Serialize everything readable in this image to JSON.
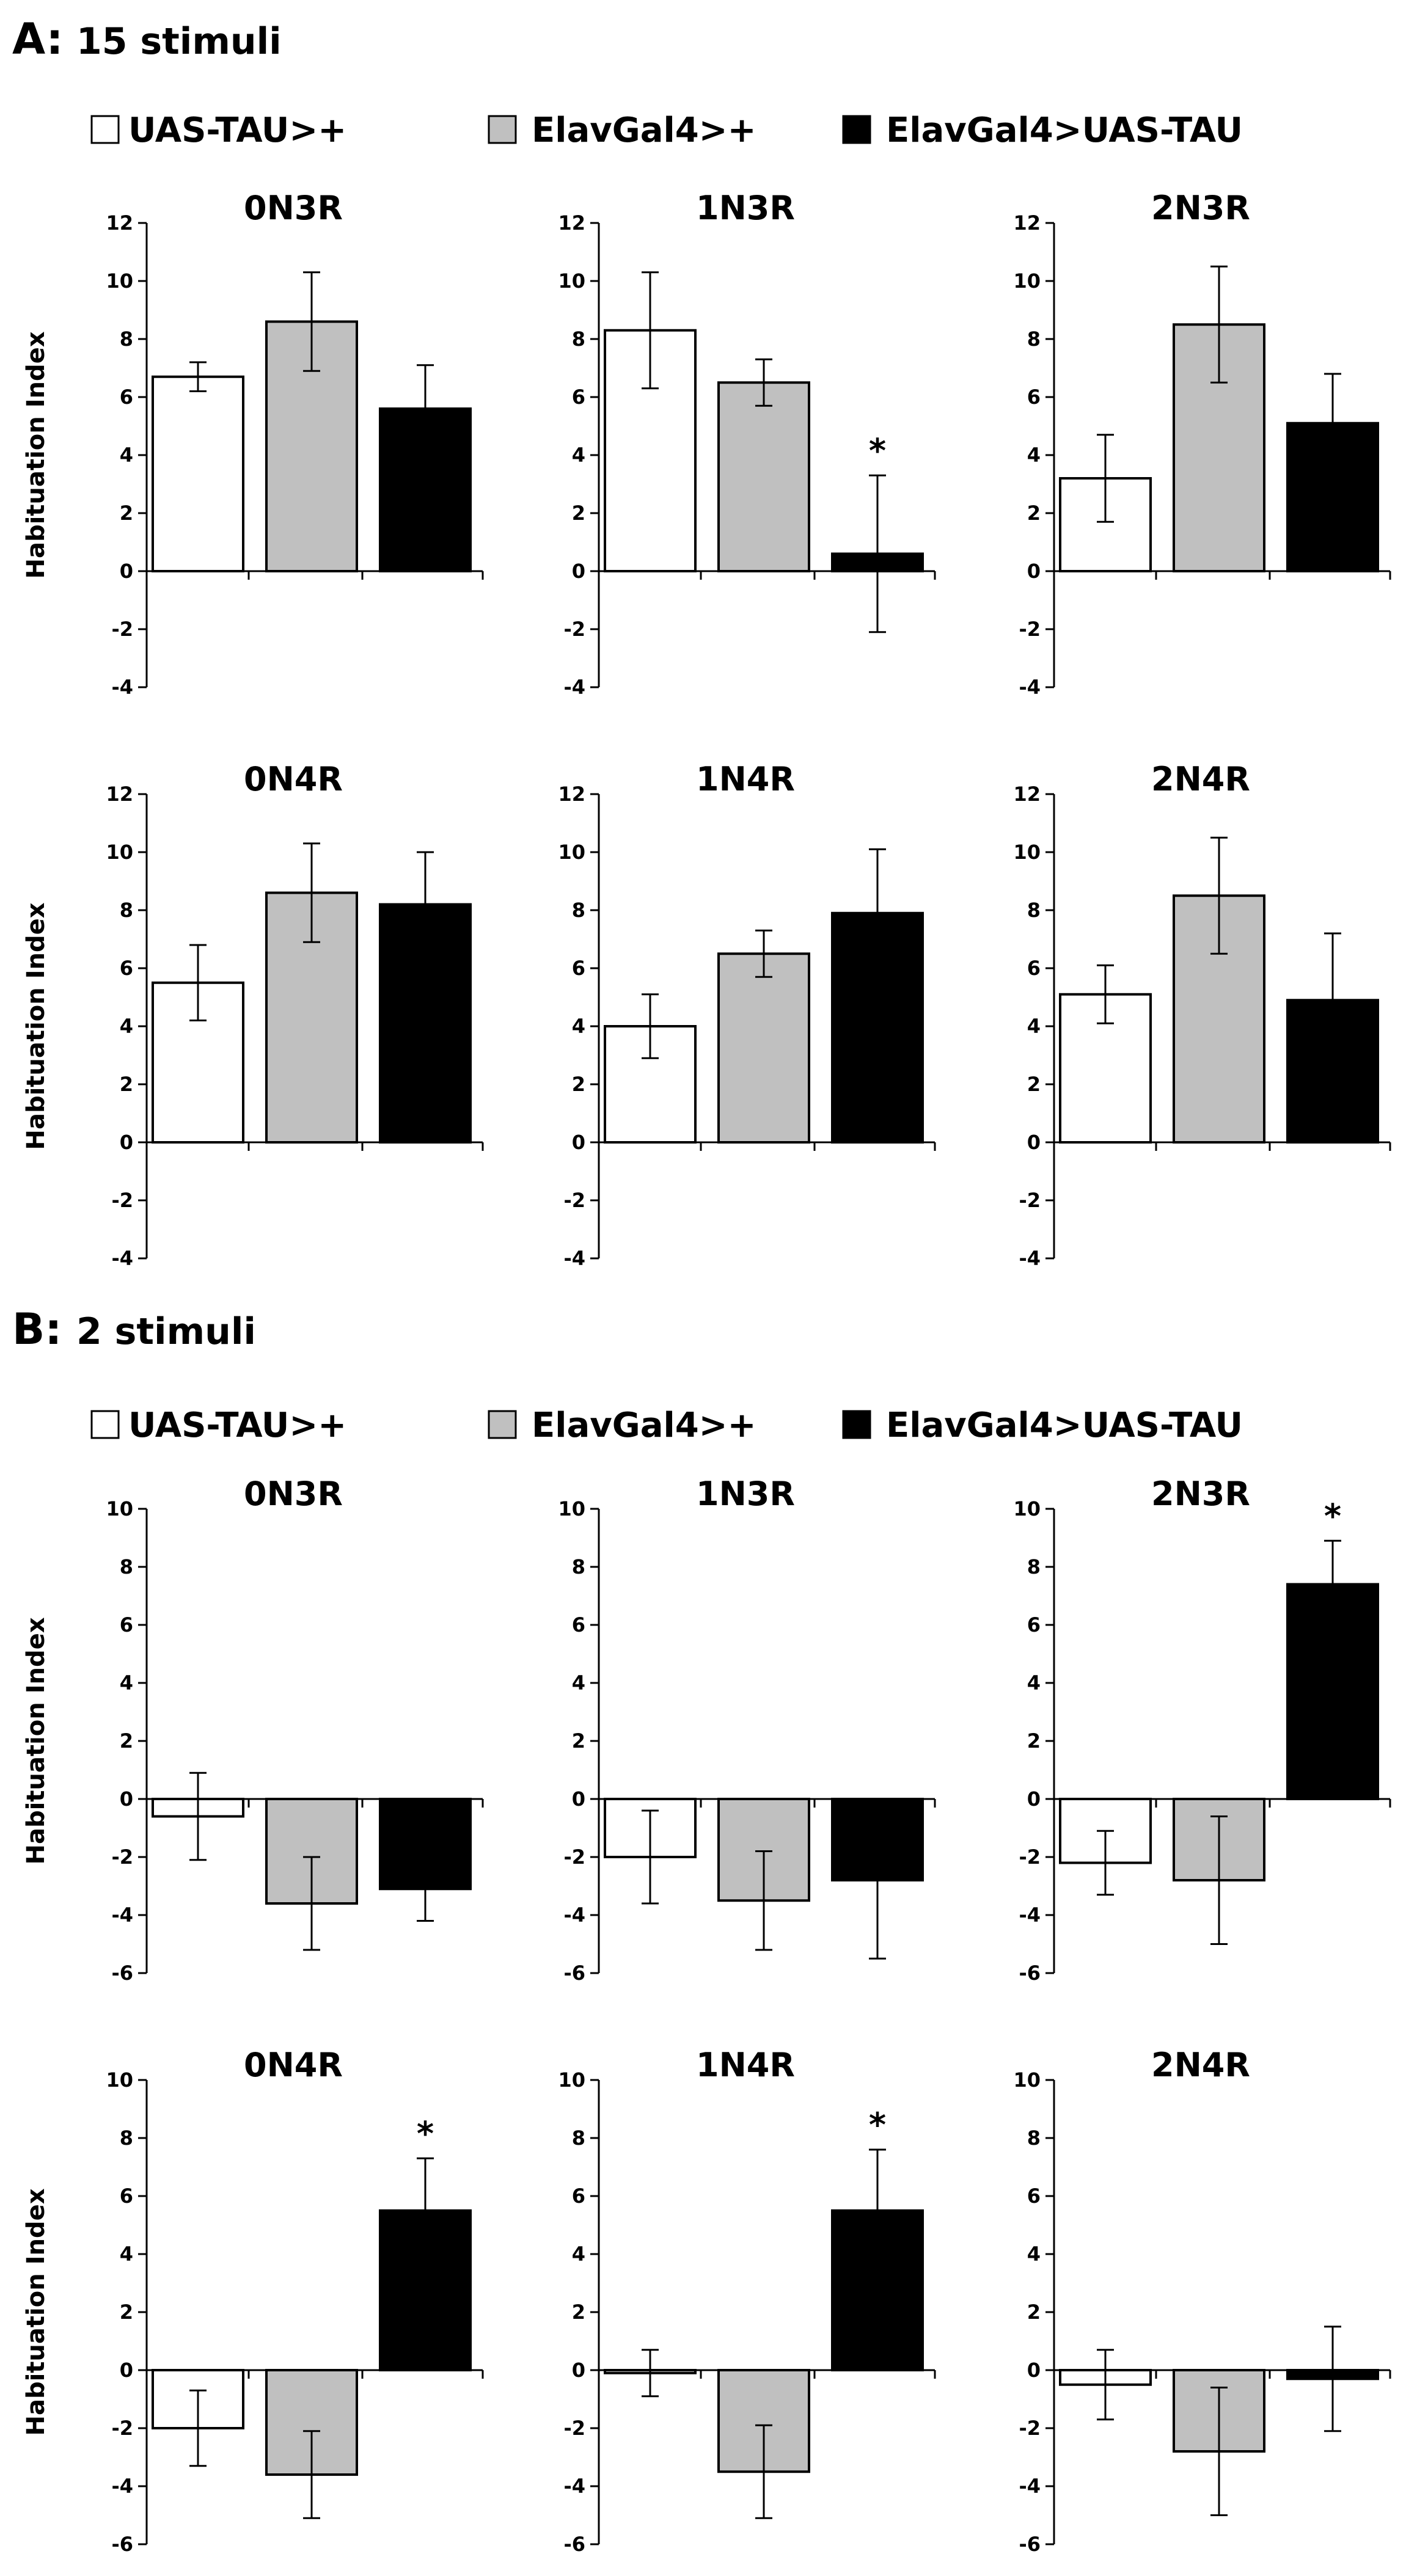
{
  "panels": [
    {
      "letter": "A:",
      "subtitle": "15 stimuli",
      "legend": [
        {
          "label": "UAS-TAU>+",
          "color": "#ffffff"
        },
        {
          "label": "ElavGal4>+",
          "color": "#c0c0c0"
        },
        {
          "label": "ElavGal4>UAS-TAU",
          "color": "#000000"
        }
      ]
    },
    {
      "letter": "B:",
      "subtitle": "2 stimuli",
      "legend": [
        {
          "label": "UAS-TAU>+",
          "color": "#ffffff"
        },
        {
          "label": "ElavGal4>+",
          "color": "#c0c0c0"
        },
        {
          "label": "ElavGal4>UAS-TAU",
          "color": "#000000"
        }
      ]
    }
  ],
  "chart_data": [
    {
      "type": "bar",
      "panel": "A",
      "title": "0N3R",
      "ylabel": "Habituation Index",
      "ylim": [
        -4,
        12
      ],
      "yticks": [
        12,
        10,
        8,
        6,
        4,
        2,
        0,
        -2,
        -4
      ],
      "series": [
        {
          "name": "UAS-TAU>+",
          "value": 6.7,
          "error": 0.5
        },
        {
          "name": "ElavGal4>+",
          "value": 8.6,
          "error": 1.7
        },
        {
          "name": "ElavGal4>UAS-TAU",
          "value": 5.6,
          "error": 1.5
        }
      ],
      "significance": ""
    },
    {
      "type": "bar",
      "panel": "A",
      "title": "1N3R",
      "ylabel": "",
      "ylim": [
        -4,
        12
      ],
      "yticks": [
        12,
        10,
        8,
        6,
        4,
        2,
        0,
        -2,
        -4
      ],
      "series": [
        {
          "name": "UAS-TAU>+",
          "value": 8.3,
          "error": 2.0
        },
        {
          "name": "ElavGal4>+",
          "value": 6.5,
          "error": 0.8
        },
        {
          "name": "ElavGal4>UAS-TAU",
          "value": 0.6,
          "error": 2.7
        }
      ],
      "significance": "*",
      "significance_index": 2
    },
    {
      "type": "bar",
      "panel": "A",
      "title": "2N3R",
      "ylabel": "",
      "ylim": [
        -4,
        12
      ],
      "yticks": [
        12,
        10,
        8,
        6,
        4,
        2,
        0,
        -2,
        -4
      ],
      "series": [
        {
          "name": "UAS-TAU>+",
          "value": 3.2,
          "error": 1.5
        },
        {
          "name": "ElavGal4>+",
          "value": 8.5,
          "error": 2.0
        },
        {
          "name": "ElavGal4>UAS-TAU",
          "value": 5.1,
          "error": 1.7
        }
      ],
      "significance": ""
    },
    {
      "type": "bar",
      "panel": "A",
      "title": "0N4R",
      "ylabel": "Habituation Index",
      "ylim": [
        -4,
        12
      ],
      "yticks": [
        12,
        10,
        8,
        6,
        4,
        2,
        0,
        -2,
        -4
      ],
      "series": [
        {
          "name": "UAS-TAU>+",
          "value": 5.5,
          "error": 1.3
        },
        {
          "name": "ElavGal4>+",
          "value": 8.6,
          "error": 1.7
        },
        {
          "name": "ElavGal4>UAS-TAU",
          "value": 8.2,
          "error": 1.8
        }
      ],
      "significance": ""
    },
    {
      "type": "bar",
      "panel": "A",
      "title": "1N4R",
      "ylabel": "",
      "ylim": [
        -4,
        12
      ],
      "yticks": [
        12,
        10,
        8,
        6,
        4,
        2,
        0,
        -2,
        -4
      ],
      "series": [
        {
          "name": "UAS-TAU>+",
          "value": 4.0,
          "error": 1.1
        },
        {
          "name": "ElavGal4>+",
          "value": 6.5,
          "error": 0.8
        },
        {
          "name": "ElavGal4>UAS-TAU",
          "value": 7.9,
          "error": 2.2
        }
      ],
      "significance": ""
    },
    {
      "type": "bar",
      "panel": "A",
      "title": "2N4R",
      "ylabel": "",
      "ylim": [
        -4,
        12
      ],
      "yticks": [
        12,
        10,
        8,
        6,
        4,
        2,
        0,
        -2,
        -4
      ],
      "series": [
        {
          "name": "UAS-TAU>+",
          "value": 5.1,
          "error": 1.0
        },
        {
          "name": "ElavGal4>+",
          "value": 8.5,
          "error": 2.0
        },
        {
          "name": "ElavGal4>UAS-TAU",
          "value": 4.9,
          "error": 2.3
        }
      ],
      "significance": ""
    },
    {
      "type": "bar",
      "panel": "B",
      "title": "0N3R",
      "ylabel": "Habituation Index",
      "ylim": [
        -6,
        10
      ],
      "yticks": [
        10,
        8,
        6,
        4,
        2,
        0,
        -2,
        -4,
        -6
      ],
      "series": [
        {
          "name": "UAS-TAU>+",
          "value": -0.6,
          "error": 1.5
        },
        {
          "name": "ElavGal4>+",
          "value": -3.6,
          "error": 1.6
        },
        {
          "name": "ElavGal4>UAS-TAU",
          "value": -3.1,
          "error": 1.1
        }
      ],
      "significance": ""
    },
    {
      "type": "bar",
      "panel": "B",
      "title": "1N3R",
      "ylabel": "",
      "ylim": [
        -6,
        10
      ],
      "yticks": [
        10,
        8,
        6,
        4,
        2,
        0,
        -2,
        -4,
        -6
      ],
      "series": [
        {
          "name": "UAS-TAU>+",
          "value": -2.0,
          "error": 1.6
        },
        {
          "name": "ElavGal4>+",
          "value": -3.5,
          "error": 1.7
        },
        {
          "name": "ElavGal4>UAS-TAU",
          "value": -2.8,
          "error": 2.7
        }
      ],
      "significance": ""
    },
    {
      "type": "bar",
      "panel": "B",
      "title": "2N3R",
      "ylabel": "",
      "ylim": [
        -6,
        10
      ],
      "yticks": [
        10,
        8,
        6,
        4,
        2,
        0,
        -2,
        -4,
        -6
      ],
      "series": [
        {
          "name": "UAS-TAU>+",
          "value": -2.2,
          "error": 1.1
        },
        {
          "name": "ElavGal4>+",
          "value": -2.8,
          "error": 2.2
        },
        {
          "name": "ElavGal4>UAS-TAU",
          "value": 7.4,
          "error": 1.5
        }
      ],
      "significance": "*",
      "significance_index": 2
    },
    {
      "type": "bar",
      "panel": "B",
      "title": "0N4R",
      "ylabel": "Habituation Index",
      "ylim": [
        -6,
        10
      ],
      "yticks": [
        10,
        8,
        6,
        4,
        2,
        0,
        -2,
        -4,
        -6
      ],
      "series": [
        {
          "name": "UAS-TAU>+",
          "value": -2.0,
          "error": 1.3
        },
        {
          "name": "ElavGal4>+",
          "value": -3.6,
          "error": 1.5
        },
        {
          "name": "ElavGal4>UAS-TAU",
          "value": 5.5,
          "error": 1.8
        }
      ],
      "significance": "*",
      "significance_index": 2
    },
    {
      "type": "bar",
      "panel": "B",
      "title": "1N4R",
      "ylabel": "",
      "ylim": [
        -6,
        10
      ],
      "yticks": [
        10,
        8,
        6,
        4,
        2,
        0,
        -2,
        -4,
        -6
      ],
      "series": [
        {
          "name": "UAS-TAU>+",
          "value": -0.1,
          "error": 0.8
        },
        {
          "name": "ElavGal4>+",
          "value": -3.5,
          "error": 1.6
        },
        {
          "name": "ElavGal4>UAS-TAU",
          "value": 5.5,
          "error": 2.1
        }
      ],
      "significance": "*",
      "significance_index": 2
    },
    {
      "type": "bar",
      "panel": "B",
      "title": "2N4R",
      "ylabel": "",
      "ylim": [
        -6,
        10
      ],
      "yticks": [
        10,
        8,
        6,
        4,
        2,
        0,
        -2,
        -4,
        -6
      ],
      "series": [
        {
          "name": "UAS-TAU>+",
          "value": -0.5,
          "error": 1.2
        },
        {
          "name": "ElavGal4>+",
          "value": -2.8,
          "error": 2.2
        },
        {
          "name": "ElavGal4>UAS-TAU",
          "value": -0.3,
          "error": 1.8
        }
      ],
      "significance": ""
    }
  ]
}
